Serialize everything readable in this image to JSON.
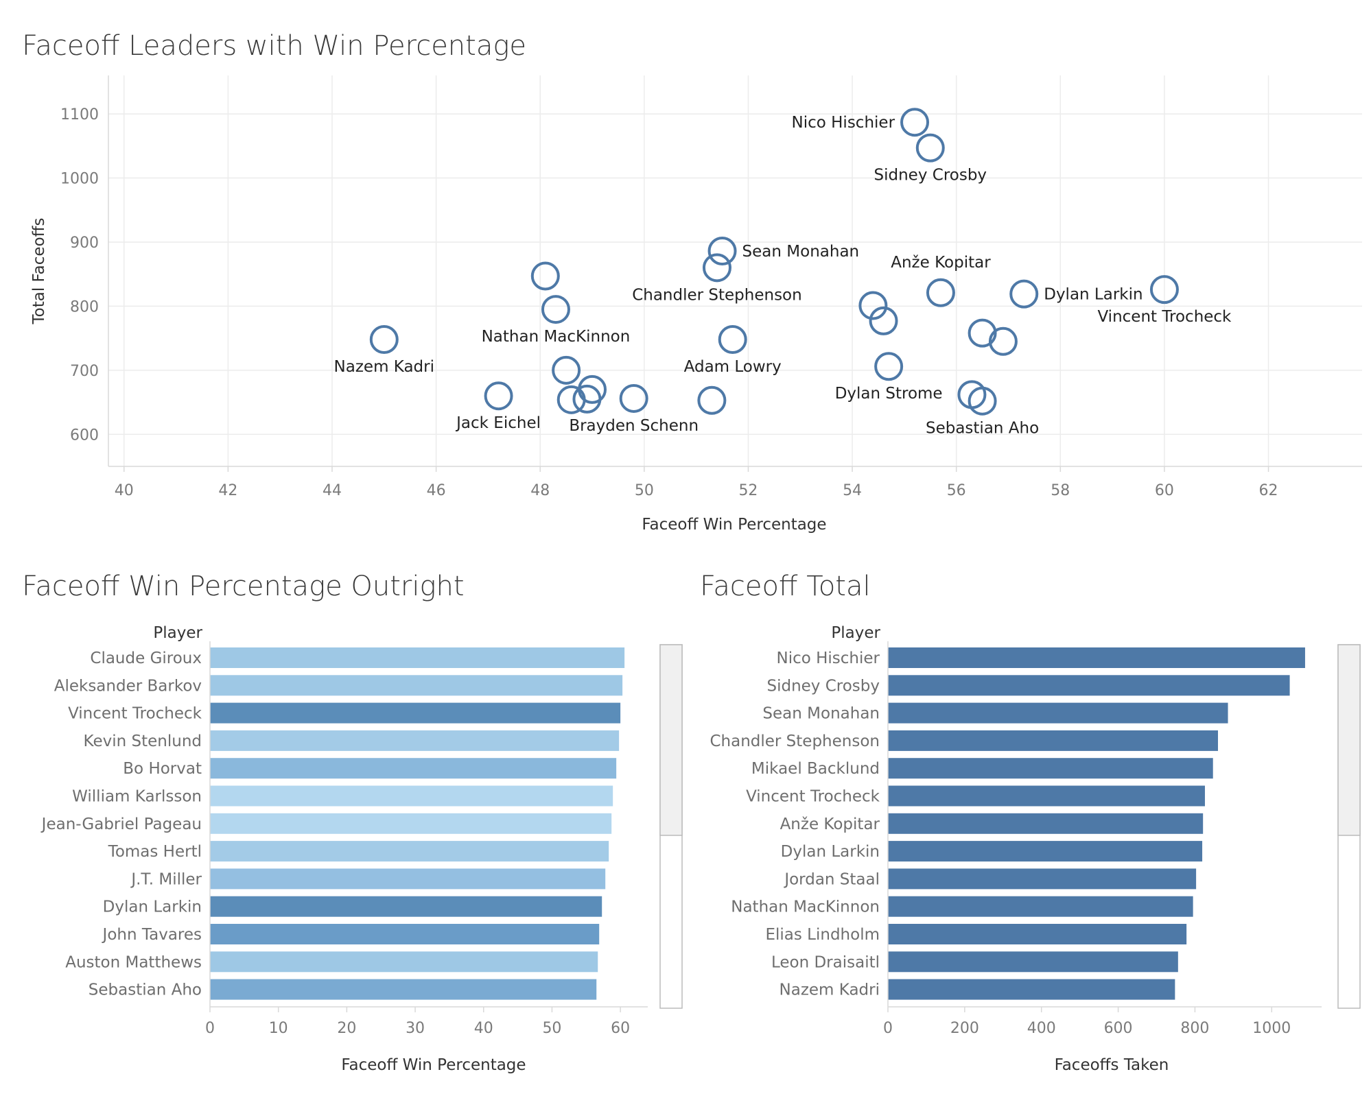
{
  "chart_data": [
    {
      "type": "scatter",
      "title": "Faceoff Leaders with Win Percentage",
      "xlabel": "Faceoff Win Percentage",
      "ylabel": "Total Faceoffs",
      "xlim": [
        39.7,
        63.8
      ],
      "ylim": [
        550,
        1160
      ],
      "xticks": [
        40,
        42,
        44,
        46,
        48,
        50,
        52,
        54,
        56,
        58,
        60,
        62
      ],
      "yticks": [
        600,
        700,
        800,
        900,
        1000,
        1100
      ],
      "grid": true,
      "marker_color": "#4e79a7",
      "points": [
        {
          "x": 55.2,
          "y": 1087,
          "label": "Nico Hischier",
          "label_pos": "left"
        },
        {
          "x": 55.5,
          "y": 1047,
          "label": "Sidney Crosby",
          "label_pos": "below"
        },
        {
          "x": 51.5,
          "y": 886,
          "label": "Sean Monahan",
          "label_pos": "right"
        },
        {
          "x": 51.4,
          "y": 860,
          "label": "Chandler Stephenson",
          "label_pos": "below"
        },
        {
          "x": 48.1,
          "y": 847,
          "label": ""
        },
        {
          "x": 48.3,
          "y": 795,
          "label": "Nathan MacKinnon",
          "label_pos": "below"
        },
        {
          "x": 45.0,
          "y": 748,
          "label": "Nazem Kadri",
          "label_pos": "below"
        },
        {
          "x": 47.2,
          "y": 660,
          "label": "Jack Eichel",
          "label_pos": "below"
        },
        {
          "x": 48.5,
          "y": 700,
          "label": ""
        },
        {
          "x": 49.0,
          "y": 670,
          "label": ""
        },
        {
          "x": 48.6,
          "y": 654,
          "label": ""
        },
        {
          "x": 48.9,
          "y": 655,
          "label": ""
        },
        {
          "x": 49.8,
          "y": 656,
          "label": "Brayden Schenn",
          "label_pos": "below"
        },
        {
          "x": 51.3,
          "y": 653,
          "label": ""
        },
        {
          "x": 51.7,
          "y": 748,
          "label": "Adam Lowry",
          "label_pos": "below"
        },
        {
          "x": 54.4,
          "y": 801,
          "label": ""
        },
        {
          "x": 54.6,
          "y": 777,
          "label": ""
        },
        {
          "x": 54.7,
          "y": 706,
          "label": "Dylan Strome",
          "label_pos": "below"
        },
        {
          "x": 55.7,
          "y": 821,
          "label": "Anže Kopitar",
          "label_pos": "above"
        },
        {
          "x": 56.5,
          "y": 758,
          "label": ""
        },
        {
          "x": 56.9,
          "y": 745,
          "label": ""
        },
        {
          "x": 56.3,
          "y": 662,
          "label": ""
        },
        {
          "x": 56.5,
          "y": 652,
          "label": "Sebastian Aho",
          "label_pos": "below"
        },
        {
          "x": 57.3,
          "y": 819,
          "label": "Dylan Larkin",
          "label_pos": "right"
        },
        {
          "x": 60.0,
          "y": 826,
          "label": "Vincent Trocheck",
          "label_pos": "below"
        }
      ]
    },
    {
      "type": "bar",
      "orientation": "horizontal",
      "title": "Faceoff Win Percentage Outright",
      "row_header": "Player",
      "xlabel": "Faceoff Win Percentage",
      "xlim": [
        0,
        64
      ],
      "xticks": [
        0,
        10,
        20,
        30,
        40,
        50,
        60
      ],
      "categories": [
        "Claude Giroux",
        "Aleksander Barkov",
        "Vincent Trocheck",
        "Kevin Stenlund",
        "Bo Horvat",
        "William Karlsson",
        "Jean-Gabriel Pageau",
        "Tomas Hertl",
        "J.T. Miller",
        "Dylan Larkin",
        "John Tavares",
        "Auston Matthews",
        "Sebastian Aho"
      ],
      "values": [
        60.6,
        60.3,
        60.0,
        59.8,
        59.4,
        58.9,
        58.7,
        58.3,
        57.8,
        57.3,
        56.9,
        56.7,
        56.5
      ],
      "colors": [
        "#9ec8e5",
        "#9ec8e5",
        "#5b8db9",
        "#a3cbe7",
        "#8ab8dc",
        "#b3d7ef",
        "#b3d7ef",
        "#a3cbe7",
        "#94bfe1",
        "#5b8db9",
        "#6a9cc8",
        "#9ec8e5",
        "#7aaad2"
      ]
    },
    {
      "type": "bar",
      "orientation": "horizontal",
      "title": "Faceoff Total",
      "row_header": "Player",
      "xlabel": "Faceoffs Taken",
      "xlim": [
        0,
        1130
      ],
      "xticks": [
        0,
        200,
        400,
        600,
        800,
        1000
      ],
      "categories": [
        "Nico Hischier",
        "Sidney Crosby",
        "Sean Monahan",
        "Chandler Stephenson",
        "Mikael Backlund",
        "Vincent Trocheck",
        "Anže Kopitar",
        "Dylan Larkin",
        "Jordan Staal",
        "Nathan MacKinnon",
        "Elias Lindholm",
        "Leon Draisaitl",
        "Nazem Kadri"
      ],
      "values": [
        1087,
        1047,
        886,
        860,
        847,
        826,
        821,
        819,
        803,
        795,
        778,
        756,
        748
      ],
      "bar_color": "#4e79a7"
    }
  ]
}
